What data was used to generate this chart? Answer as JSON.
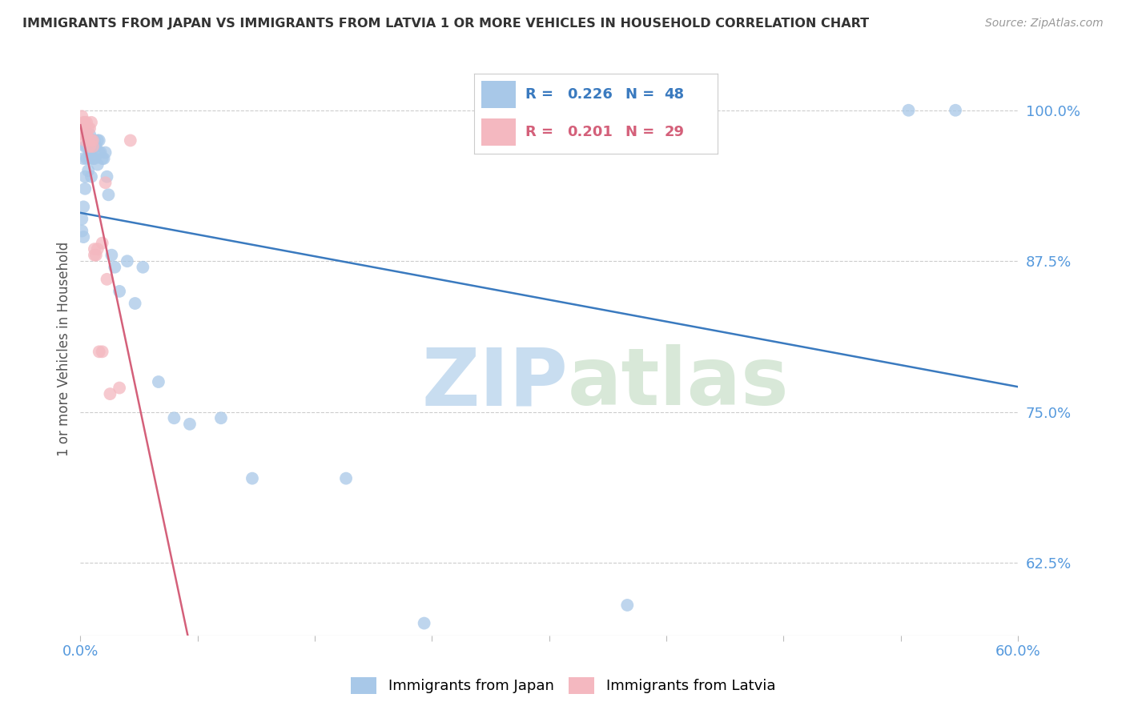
{
  "title": "IMMIGRANTS FROM JAPAN VS IMMIGRANTS FROM LATVIA 1 OR MORE VEHICLES IN HOUSEHOLD CORRELATION CHART",
  "source": "Source: ZipAtlas.com",
  "ylabel": "1 or more Vehicles in Household",
  "xlim": [
    0.0,
    0.6
  ],
  "ylim": [
    0.565,
    1.04
  ],
  "yticks": [
    0.625,
    0.75,
    0.875,
    1.0
  ],
  "ytick_labels": [
    "62.5%",
    "75.0%",
    "87.5%",
    "100.0%"
  ],
  "xticks": [
    0.0,
    0.075,
    0.15,
    0.225,
    0.3,
    0.375,
    0.45,
    0.525,
    0.6
  ],
  "japan_R": 0.226,
  "japan_N": 48,
  "latvia_R": 0.201,
  "latvia_N": 29,
  "japan_color": "#a8c8e8",
  "latvia_color": "#f4b8c0",
  "japan_line_color": "#3a7abf",
  "latvia_line_color": "#d4607a",
  "background_color": "#ffffff",
  "japan_x": [
    0.001,
    0.001,
    0.002,
    0.002,
    0.002,
    0.003,
    0.003,
    0.003,
    0.004,
    0.004,
    0.005,
    0.005,
    0.006,
    0.006,
    0.006,
    0.007,
    0.007,
    0.008,
    0.008,
    0.009,
    0.009,
    0.01,
    0.011,
    0.011,
    0.012,
    0.012,
    0.013,
    0.014,
    0.015,
    0.016,
    0.017,
    0.018,
    0.02,
    0.022,
    0.025,
    0.03,
    0.035,
    0.04,
    0.05,
    0.06,
    0.07,
    0.09,
    0.11,
    0.17,
    0.22,
    0.35,
    0.53,
    0.56
  ],
  "japan_y": [
    0.9,
    0.91,
    0.895,
    0.92,
    0.96,
    0.935,
    0.945,
    0.97,
    0.96,
    0.97,
    0.95,
    0.975,
    0.96,
    0.965,
    0.98,
    0.945,
    0.97,
    0.96,
    0.975,
    0.96,
    0.975,
    0.97,
    0.975,
    0.955,
    0.965,
    0.975,
    0.965,
    0.96,
    0.96,
    0.965,
    0.945,
    0.93,
    0.88,
    0.87,
    0.85,
    0.875,
    0.84,
    0.87,
    0.775,
    0.745,
    0.74,
    0.745,
    0.695,
    0.695,
    0.575,
    0.59,
    1.0,
    1.0
  ],
  "latvia_x": [
    0.001,
    0.001,
    0.002,
    0.002,
    0.003,
    0.003,
    0.003,
    0.004,
    0.004,
    0.005,
    0.005,
    0.006,
    0.006,
    0.007,
    0.007,
    0.008,
    0.008,
    0.009,
    0.009,
    0.01,
    0.011,
    0.012,
    0.014,
    0.014,
    0.016,
    0.017,
    0.019,
    0.025,
    0.032
  ],
  "latvia_y": [
    0.995,
    0.985,
    0.99,
    0.98,
    0.985,
    0.975,
    0.99,
    0.98,
    0.99,
    0.975,
    0.985,
    0.97,
    0.985,
    0.975,
    0.99,
    0.97,
    0.975,
    0.88,
    0.885,
    0.88,
    0.885,
    0.8,
    0.8,
    0.89,
    0.94,
    0.86,
    0.765,
    0.77,
    0.975
  ],
  "watermark_zip": "ZIP",
  "watermark_atlas": "atlas",
  "legend_japan": "Immigrants from Japan",
  "legend_latvia": "Immigrants from Latvia"
}
